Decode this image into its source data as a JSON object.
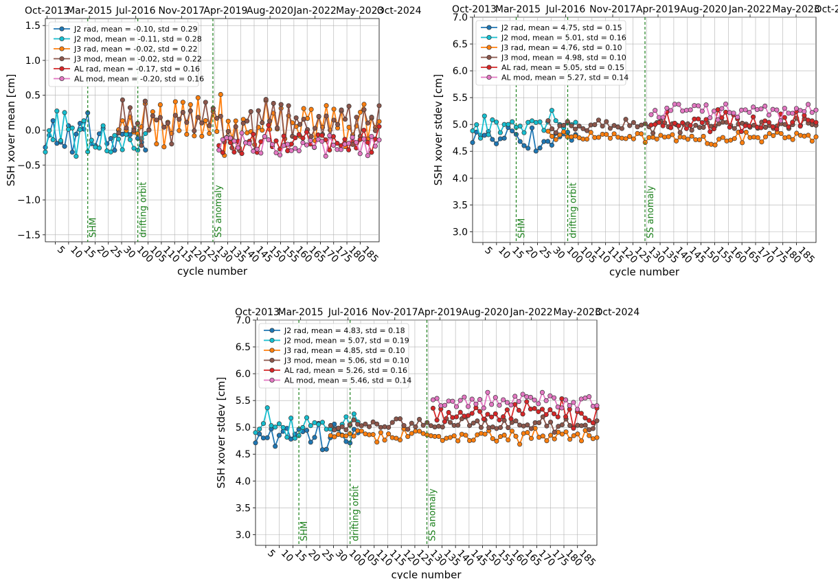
{
  "chart_data": [
    {
      "type": "line",
      "ylabel": "SSH xover mean [cm]",
      "xlabel": "cycle number",
      "ylim": [
        -1.6,
        1.6
      ],
      "yticks": [
        -1.5,
        -1.0,
        -0.5,
        0.0,
        0.5,
        1.0,
        1.5
      ],
      "ytick_labels": [
        "−1.5",
        "−1.0",
        "−0.5",
        "0.0",
        "0.5",
        "1.0",
        "1.5"
      ],
      "grid": true,
      "legend_position": "upper-left",
      "series": [
        {
          "name": "J2 rad, mean = -0.10, std = 0.29",
          "color": "#1f77b4",
          "seg": "J2",
          "seed": 11,
          "mean": -0.1,
          "std": 0.29
        },
        {
          "name": "J2 mod, mean = -0.11, std = 0.28",
          "color": "#17becf",
          "seg": "J2",
          "seed": 12,
          "mean": -0.11,
          "std": 0.28
        },
        {
          "name": "J3 rad, mean = -0.02, std = 0.22",
          "color": "#ff7f0e",
          "seg": "J3",
          "seed": 13,
          "mean": -0.02,
          "std": 0.22
        },
        {
          "name": "J3 mod, mean = -0.02, std = 0.22",
          "color": "#8c564b",
          "seg": "J3",
          "seed": 14,
          "mean": -0.02,
          "std": 0.22
        },
        {
          "name": "AL rad, mean = -0.17, std = 0.16",
          "color": "#d62728",
          "seg": "AL",
          "seed": 15,
          "mean": -0.17,
          "std": 0.16
        },
        {
          "name": "AL mod, mean = -0.20, std = 0.16",
          "color": "#e377c2",
          "seg": "AL",
          "seed": 16,
          "mean": -0.2,
          "std": 0.16
        }
      ]
    },
    {
      "type": "line",
      "ylabel": "SSH xover stdev [cm]",
      "xlabel": "cycle number",
      "ylim": [
        2.8,
        7.0
      ],
      "yticks": [
        3.0,
        3.5,
        4.0,
        4.5,
        5.0,
        5.5,
        6.0,
        6.5,
        7.0
      ],
      "ytick_labels": [
        "3.0",
        "3.5",
        "4.0",
        "4.5",
        "5.0",
        "5.5",
        "6.0",
        "6.5",
        "7.0"
      ],
      "grid": true,
      "legend_position": "upper-left",
      "series": [
        {
          "name": "J2 rad, mean = 4.75, std = 0.15",
          "color": "#1f77b4",
          "seg": "J2",
          "seed": 21,
          "mean": 4.75,
          "std": 0.15
        },
        {
          "name": "J2 mod, mean = 5.01, std = 0.16",
          "color": "#17becf",
          "seg": "J2",
          "seed": 22,
          "mean": 5.01,
          "std": 0.16
        },
        {
          "name": "J3 rad, mean = 4.76, std = 0.10",
          "color": "#ff7f0e",
          "seg": "J3",
          "seed": 23,
          "mean": 4.76,
          "std": 0.1
        },
        {
          "name": "J3 mod, mean = 4.98, std = 0.10",
          "color": "#8c564b",
          "seg": "J3",
          "seed": 24,
          "mean": 4.98,
          "std": 0.1
        },
        {
          "name": "AL rad, mean = 5.05, std = 0.15",
          "color": "#d62728",
          "seg": "AL",
          "seed": 25,
          "mean": 5.05,
          "std": 0.15
        },
        {
          "name": "AL mod, mean = 5.27, std = 0.14",
          "color": "#e377c2",
          "seg": "AL",
          "seed": 26,
          "mean": 5.27,
          "std": 0.14
        }
      ]
    },
    {
      "type": "line",
      "ylabel": "SSH xover stdev [cm]",
      "xlabel": "cycle number",
      "ylim": [
        2.8,
        7.0
      ],
      "yticks": [
        3.0,
        3.5,
        4.0,
        4.5,
        5.0,
        5.5,
        6.0,
        6.5,
        7.0
      ],
      "ytick_labels": [
        "3.0",
        "3.5",
        "4.0",
        "4.5",
        "5.0",
        "5.5",
        "6.0",
        "6.5",
        "7.0"
      ],
      "grid": true,
      "legend_position": "upper-left",
      "series": [
        {
          "name": "J2 rad, mean = 4.83, std = 0.18",
          "color": "#1f77b4",
          "seg": "J2",
          "seed": 31,
          "mean": 4.83,
          "std": 0.18
        },
        {
          "name": "J2 mod, mean = 5.07, std = 0.19",
          "color": "#17becf",
          "seg": "J2",
          "seed": 32,
          "mean": 5.07,
          "std": 0.19
        },
        {
          "name": "J3 rad, mean = 4.85, std = 0.10",
          "color": "#ff7f0e",
          "seg": "J3",
          "seed": 33,
          "mean": 4.85,
          "std": 0.1
        },
        {
          "name": "J3 mod, mean = 5.06, std = 0.10",
          "color": "#8c564b",
          "seg": "J3",
          "seed": 34,
          "mean": 5.06,
          "std": 0.1
        },
        {
          "name": "AL rad, mean = 5.26, std = 0.16",
          "color": "#d62728",
          "seg": "AL",
          "seed": 35,
          "mean": 5.26,
          "std": 0.16
        },
        {
          "name": "AL mod, mean = 5.46, std = 0.14",
          "color": "#e377c2",
          "seg": "AL",
          "seed": 36,
          "mean": 5.46,
          "std": 0.14
        }
      ]
    }
  ],
  "top_axis_labels": [
    "Oct-2013",
    "Mar-2015",
    "Jul-2016",
    "Nov-2017",
    "Apr-2019",
    "Aug-2020",
    "Jan-2022",
    "May-2023",
    "Oct-2024"
  ],
  "bottom_tick_labels": [
    "5",
    "10",
    "15",
    "20",
    "25",
    "30",
    "100",
    "105",
    "110",
    "115",
    "120",
    "125",
    "130",
    "135",
    "140",
    "145",
    "150",
    "155",
    "160",
    "165",
    "170",
    "175",
    "180",
    "185"
  ],
  "events": [
    {
      "label": "SHM"
    },
    {
      "label": "drifting orbit"
    },
    {
      "label": "SS anomaly"
    }
  ]
}
